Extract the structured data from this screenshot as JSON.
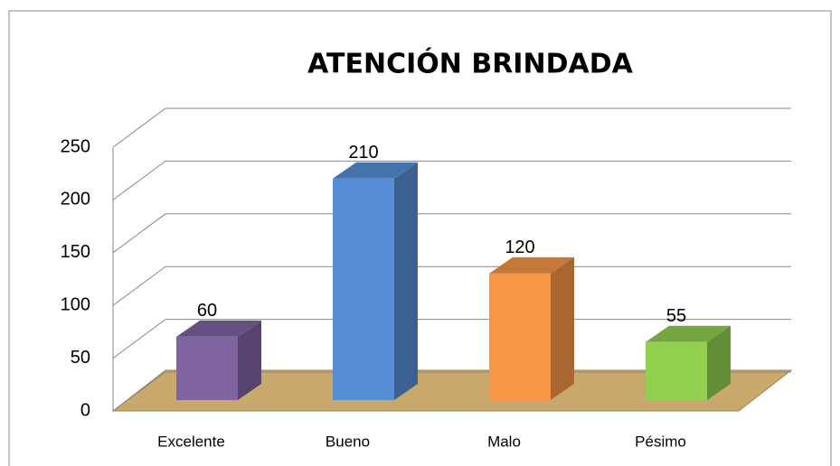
{
  "chart_data": {
    "type": "bar3d",
    "title": "ATENCIÓN BRINDADA",
    "categories": [
      "Excelente",
      "Bueno",
      "Malo",
      "Pésimo"
    ],
    "values": [
      60,
      210,
      120,
      55
    ],
    "colors": [
      "#8064a2",
      "#558ed5",
      "#f79646",
      "#92d050"
    ],
    "ylim": [
      0,
      250
    ],
    "yticks": [
      0,
      50,
      100,
      150,
      200,
      250
    ],
    "grid": true
  }
}
